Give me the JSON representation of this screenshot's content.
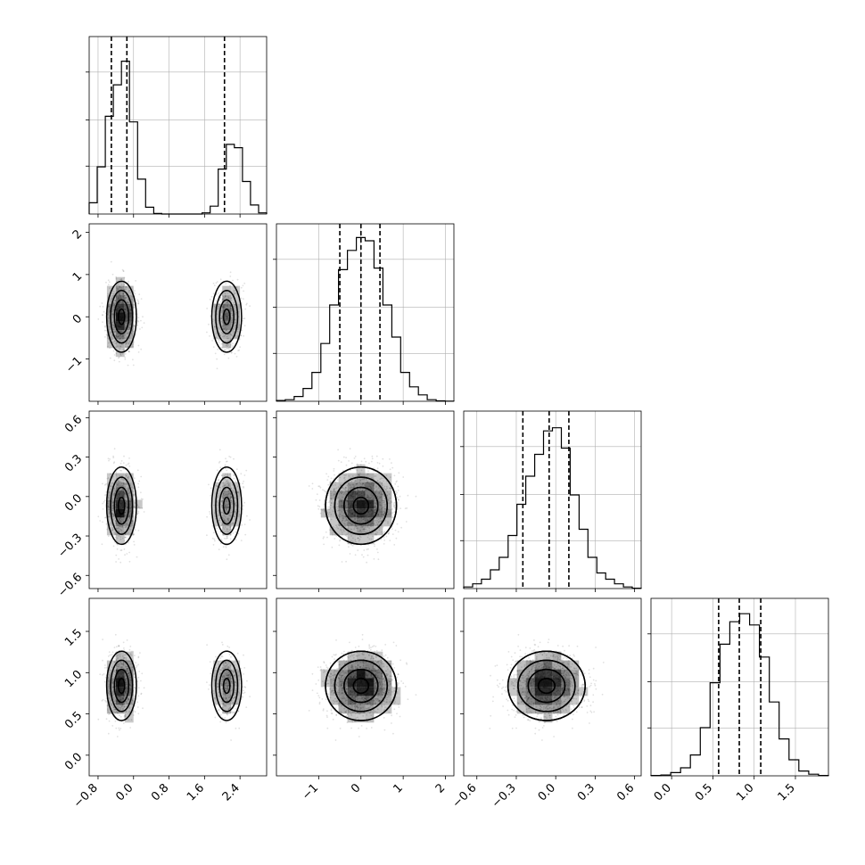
{
  "chart_data": {
    "type": "corner",
    "n_params": 4,
    "axis_ranges": [
      [
        -1.0,
        3.0
      ],
      [
        -2.0,
        2.2
      ],
      [
        -0.7,
        0.65
      ],
      [
        -0.25,
        1.9
      ]
    ],
    "ticks": [
      {
        "values": [
          -0.8,
          0.0,
          0.8,
          1.6,
          2.4
        ],
        "labels": [
          "−0.8",
          "0.0",
          "0.8",
          "1.6",
          "2.4"
        ]
      },
      {
        "values": [
          -1,
          0,
          1,
          2
        ],
        "labels": [
          "−1",
          "0",
          "1",
          "2"
        ]
      },
      {
        "values": [
          -0.6,
          -0.3,
          0.0,
          0.3,
          0.6
        ],
        "labels": [
          "−0.6",
          "−0.3",
          "0.0",
          "0.3",
          "0.6"
        ]
      },
      {
        "values": [
          0.0,
          0.5,
          1.0,
          1.5
        ],
        "labels": [
          "0.0",
          "0.5",
          "1.0",
          "1.5"
        ]
      }
    ],
    "row_ticks": [
      null,
      {
        "values": [
          -1,
          0,
          1,
          2
        ],
        "labels": [
          "−1",
          "0",
          "1",
          "2"
        ]
      },
      {
        "values": [
          -0.6,
          -0.3,
          0.0,
          0.3,
          0.6
        ],
        "labels": [
          "−0.6",
          "−0.3",
          "0.0",
          "0.3",
          "0.6"
        ]
      },
      {
        "values": [
          0.0,
          0.5,
          1.0,
          1.5
        ],
        "labels": [
          "0.0",
          "0.5",
          "1.0",
          "1.5"
        ]
      }
    ],
    "histograms": [
      {
        "edges_min": -1.0,
        "edges_max": 3.0,
        "counts": [
          1.0,
          4.2,
          8.7,
          11.5,
          13.6,
          8.2,
          3.1,
          0.6,
          0.05,
          0,
          0,
          0,
          0,
          0,
          0.1,
          0.7,
          4.0,
          6.2,
          5.9,
          2.9,
          0.8,
          0.1
        ],
        "quantiles": [
          -0.5,
          -0.15,
          2.05
        ],
        "hist_max": 15.0
      },
      {
        "edges_min": -2.0,
        "edges_max": 2.2,
        "counts": [
          0.05,
          0.1,
          0.3,
          0.8,
          1.8,
          3.6,
          6.0,
          8.2,
          9.4,
          10.2,
          10.0,
          8.3,
          6.0,
          4.0,
          1.8,
          0.9,
          0.4,
          0.1,
          0.03,
          0.01
        ],
        "quantiles": [
          -0.5,
          0.0,
          0.45
        ],
        "hist_max": 10.5
      },
      {
        "edges_min": -0.7,
        "edges_max": 0.65,
        "counts": [
          0.1,
          0.3,
          0.6,
          1.2,
          2.0,
          3.4,
          5.4,
          7.2,
          8.6,
          10.1,
          10.3,
          9.0,
          6.0,
          3.8,
          2.0,
          1.0,
          0.6,
          0.3,
          0.1,
          0.02
        ],
        "quantiles": [
          -0.25,
          -0.05,
          0.1
        ],
        "hist_max": 10.8
      },
      {
        "edges_min": -0.25,
        "edges_max": 1.9,
        "counts": [
          0.02,
          0.05,
          0.2,
          0.5,
          1.3,
          3.0,
          5.8,
          8.2,
          9.6,
          10.1,
          9.4,
          7.4,
          4.6,
          2.3,
          1.0,
          0.3,
          0.1,
          0.02
        ],
        "quantiles": [
          0.57,
          0.82,
          1.08
        ],
        "hist_max": 10.5
      }
    ],
    "modes": [
      {
        "weight": 0.66,
        "mean": [
          -0.27,
          0.0,
          -0.07,
          0.84
        ],
        "sd": [
          0.16,
          0.4,
          0.14,
          0.2
        ]
      },
      {
        "weight": 0.34,
        "mean": [
          2.1,
          0.0,
          -0.07,
          0.84
        ],
        "sd": [
          0.16,
          0.4,
          0.14,
          0.2
        ]
      }
    ],
    "grid": true,
    "colors": {
      "ink": "#000000",
      "grid": "#b0b0b0",
      "density": "#000000"
    }
  }
}
